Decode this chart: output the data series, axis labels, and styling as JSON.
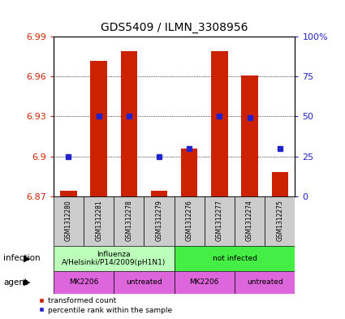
{
  "title": "GDS5409 / ILMN_3308956",
  "samples": [
    "GSM1312280",
    "GSM1312281",
    "GSM1312278",
    "GSM1312279",
    "GSM1312276",
    "GSM1312277",
    "GSM1312274",
    "GSM1312275"
  ],
  "transformed_count": [
    6.874,
    6.972,
    6.979,
    6.874,
    6.906,
    6.979,
    6.961,
    6.888
  ],
  "percentile_rank_pct": [
    25,
    50,
    50,
    25,
    30,
    50,
    49,
    30
  ],
  "ylim_left": [
    6.87,
    6.99
  ],
  "ylim_right": [
    0,
    100
  ],
  "yticks_left": [
    6.87,
    6.9,
    6.93,
    6.96,
    6.99
  ],
  "yticks_right": [
    0,
    25,
    50,
    75,
    100
  ],
  "ytick_labels_left": [
    "6.87",
    "6.9",
    "6.93",
    "6.96",
    "6.99"
  ],
  "ytick_labels_right": [
    "0",
    "25",
    "50",
    "75",
    "100%"
  ],
  "bar_color": "#cc2200",
  "dot_color": "#2222cc",
  "bar_bottom": 6.87,
  "infection_groups": [
    {
      "label": "Influenza\nA/Helsinki/P14/2009(pH1N1)",
      "start": 0,
      "end": 4,
      "color": "#bbffbb"
    },
    {
      "label": "not infected",
      "start": 4,
      "end": 8,
      "color": "#44ee44"
    }
  ],
  "agent_groups": [
    {
      "label": "MK2206",
      "start": 0,
      "end": 2
    },
    {
      "label": "untreated",
      "start": 2,
      "end": 4
    },
    {
      "label": "MK2206",
      "start": 4,
      "end": 6
    },
    {
      "label": "untreated",
      "start": 6,
      "end": 8
    }
  ],
  "agent_color": "#dd66dd",
  "sample_box_color": "#cccccc",
  "left_label_color": "#cc2200",
  "right_label_color": "#2222cc",
  "legend_red_label": "transformed count",
  "legend_blue_label": "percentile rank within the sample"
}
